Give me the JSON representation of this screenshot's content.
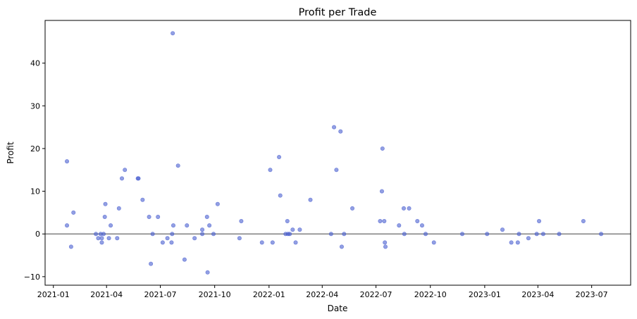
{
  "chart_data": {
    "type": "scatter",
    "title": "Profit per Trade",
    "xlabel": "Date",
    "ylabel": "Profit",
    "x_axis": {
      "type": "date",
      "range": [
        "2020-12-18",
        "2023-09-05"
      ],
      "ticks": [
        {
          "date": "2021-01-01",
          "label": "2021-01"
        },
        {
          "date": "2021-04-01",
          "label": "2021-04"
        },
        {
          "date": "2021-07-01",
          "label": "2021-07"
        },
        {
          "date": "2021-10-01",
          "label": "2021-10"
        },
        {
          "date": "2022-01-01",
          "label": "2022-01"
        },
        {
          "date": "2022-04-01",
          "label": "2022-04"
        },
        {
          "date": "2022-07-01",
          "label": "2022-07"
        },
        {
          "date": "2022-10-01",
          "label": "2022-10"
        },
        {
          "date": "2023-01-01",
          "label": "2023-01"
        },
        {
          "date": "2023-04-01",
          "label": "2023-04"
        },
        {
          "date": "2023-07-01",
          "label": "2023-07"
        }
      ]
    },
    "y_axis": {
      "range": [
        -12,
        50
      ],
      "ticks": [
        -10,
        0,
        10,
        20,
        30,
        40
      ]
    },
    "grid": false,
    "reference_line": {
      "y": 0,
      "color": "#808080"
    },
    "marker_color": "#4a5fd0",
    "points": [
      {
        "x": "2021-01-24",
        "y": 17
      },
      {
        "x": "2021-01-24",
        "y": 2
      },
      {
        "x": "2021-01-31",
        "y": -3
      },
      {
        "x": "2021-02-04",
        "y": 5
      },
      {
        "x": "2021-03-14",
        "y": 0
      },
      {
        "x": "2021-03-18",
        "y": -1
      },
      {
        "x": "2021-03-22",
        "y": 0
      },
      {
        "x": "2021-03-24",
        "y": -1
      },
      {
        "x": "2021-03-24",
        "y": -2
      },
      {
        "x": "2021-03-27",
        "y": 0
      },
      {
        "x": "2021-03-29",
        "y": 4
      },
      {
        "x": "2021-03-30",
        "y": 7
      },
      {
        "x": "2021-04-05",
        "y": -1
      },
      {
        "x": "2021-04-08",
        "y": 2
      },
      {
        "x": "2021-04-19",
        "y": -1
      },
      {
        "x": "2021-04-22",
        "y": 6
      },
      {
        "x": "2021-04-27",
        "y": 13
      },
      {
        "x": "2021-05-02",
        "y": 15
      },
      {
        "x": "2021-05-24",
        "y": 13
      },
      {
        "x": "2021-05-25",
        "y": 13
      },
      {
        "x": "2021-06-01",
        "y": 8
      },
      {
        "x": "2021-06-12",
        "y": 4
      },
      {
        "x": "2021-06-15",
        "y": -7
      },
      {
        "x": "2021-06-18",
        "y": 0
      },
      {
        "x": "2021-06-27",
        "y": 4
      },
      {
        "x": "2021-07-05",
        "y": -2
      },
      {
        "x": "2021-07-13",
        "y": -1
      },
      {
        "x": "2021-07-20",
        "y": -2
      },
      {
        "x": "2021-07-21",
        "y": 0
      },
      {
        "x": "2021-07-22",
        "y": 47
      },
      {
        "x": "2021-07-23",
        "y": 2
      },
      {
        "x": "2021-07-31",
        "y": 16
      },
      {
        "x": "2021-08-11",
        "y": -6
      },
      {
        "x": "2021-08-15",
        "y": 2
      },
      {
        "x": "2021-08-28",
        "y": -1
      },
      {
        "x": "2021-09-10",
        "y": 0
      },
      {
        "x": "2021-09-10",
        "y": 1
      },
      {
        "x": "2021-09-18",
        "y": 4
      },
      {
        "x": "2021-09-19",
        "y": -9
      },
      {
        "x": "2021-09-22",
        "y": 2
      },
      {
        "x": "2021-09-29",
        "y": 0
      },
      {
        "x": "2021-10-06",
        "y": 7
      },
      {
        "x": "2021-11-12",
        "y": -1
      },
      {
        "x": "2021-11-15",
        "y": 3
      },
      {
        "x": "2021-12-20",
        "y": -2
      },
      {
        "x": "2022-01-03",
        "y": 15
      },
      {
        "x": "2022-01-07",
        "y": -2
      },
      {
        "x": "2022-01-18",
        "y": 18
      },
      {
        "x": "2022-01-20",
        "y": 9
      },
      {
        "x": "2022-01-29",
        "y": 0
      },
      {
        "x": "2022-02-01",
        "y": 3
      },
      {
        "x": "2022-02-02",
        "y": 0
      },
      {
        "x": "2022-02-05",
        "y": 0
      },
      {
        "x": "2022-02-10",
        "y": 1
      },
      {
        "x": "2022-02-15",
        "y": -2
      },
      {
        "x": "2022-02-22",
        "y": 1
      },
      {
        "x": "2022-03-12",
        "y": 8
      },
      {
        "x": "2022-04-16",
        "y": 0
      },
      {
        "x": "2022-04-21",
        "y": 25
      },
      {
        "x": "2022-04-25",
        "y": 15
      },
      {
        "x": "2022-05-02",
        "y": 24
      },
      {
        "x": "2022-05-04",
        "y": -3
      },
      {
        "x": "2022-05-08",
        "y": 0
      },
      {
        "x": "2022-05-22",
        "y": 6
      },
      {
        "x": "2022-07-08",
        "y": 3
      },
      {
        "x": "2022-07-11",
        "y": 10
      },
      {
        "x": "2022-07-12",
        "y": 20
      },
      {
        "x": "2022-07-15",
        "y": 3
      },
      {
        "x": "2022-07-16",
        "y": -2
      },
      {
        "x": "2022-07-17",
        "y": -3
      },
      {
        "x": "2022-08-09",
        "y": 2
      },
      {
        "x": "2022-08-17",
        "y": 6
      },
      {
        "x": "2022-08-18",
        "y": 0
      },
      {
        "x": "2022-08-26",
        "y": 6
      },
      {
        "x": "2022-09-09",
        "y": 3
      },
      {
        "x": "2022-09-17",
        "y": 2
      },
      {
        "x": "2022-09-23",
        "y": 0
      },
      {
        "x": "2022-10-07",
        "y": -2
      },
      {
        "x": "2022-11-24",
        "y": 0
      },
      {
        "x": "2023-01-05",
        "y": 0
      },
      {
        "x": "2023-01-31",
        "y": 1
      },
      {
        "x": "2023-02-15",
        "y": -2
      },
      {
        "x": "2023-02-26",
        "y": -2
      },
      {
        "x": "2023-02-28",
        "y": 0
      },
      {
        "x": "2023-03-16",
        "y": -1
      },
      {
        "x": "2023-03-30",
        "y": 0
      },
      {
        "x": "2023-04-03",
        "y": 3
      },
      {
        "x": "2023-04-10",
        "y": 0
      },
      {
        "x": "2023-05-07",
        "y": 0
      },
      {
        "x": "2023-06-17",
        "y": 3
      },
      {
        "x": "2023-07-17",
        "y": 0
      }
    ]
  }
}
